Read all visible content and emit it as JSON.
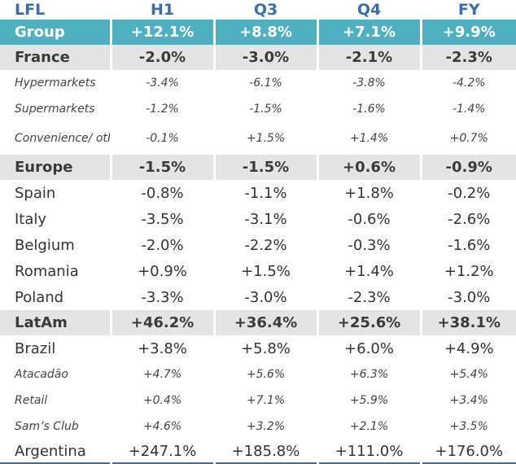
{
  "chart_data": {
    "type": "table",
    "title": "LFL",
    "columns": [
      "H1",
      "Q3",
      "Q4",
      "FY"
    ],
    "rows": [
      {
        "label": "Group",
        "level": "total",
        "values": [
          "+12.1%",
          "+8.8%",
          "+7.1%",
          "+9.9%"
        ]
      },
      {
        "label": "France",
        "level": "region",
        "values": [
          "-2.0%",
          "-3.0%",
          "-2.1%",
          "-2.3%"
        ]
      },
      {
        "label": "Hypermarkets",
        "level": "format",
        "values": [
          "-3.4%",
          "-6.1%",
          "-3.8%",
          "-4.2%"
        ]
      },
      {
        "label": "Supermarkets",
        "level": "format",
        "values": [
          "-1.2%",
          "-1.5%",
          "-1.6%",
          "-1.4%"
        ]
      },
      {
        "label": "Convenience/ other formats",
        "level": "format",
        "values": [
          "-0.1%",
          "+1.5%",
          "+1.4%",
          "+0.7%"
        ]
      },
      {
        "label": "Europe",
        "level": "region",
        "values": [
          "-1.5%",
          "-1.5%",
          "+0.6%",
          "-0.9%"
        ]
      },
      {
        "label": "Spain",
        "level": "country",
        "values": [
          "-0.8%",
          "-1.1%",
          "+1.8%",
          "-0.2%"
        ]
      },
      {
        "label": "Italy",
        "level": "country",
        "values": [
          "-3.5%",
          "-3.1%",
          "-0.6%",
          "-2.6%"
        ]
      },
      {
        "label": "Belgium",
        "level": "country",
        "values": [
          "-2.0%",
          "-2.2%",
          "-0.3%",
          "-1.6%"
        ]
      },
      {
        "label": "Romania",
        "level": "country",
        "values": [
          "+0.9%",
          "+1.5%",
          "+1.4%",
          "+1.2%"
        ]
      },
      {
        "label": "Poland",
        "level": "country",
        "values": [
          "-3.3%",
          "-3.0%",
          "-2.3%",
          "-3.0%"
        ]
      },
      {
        "label": "LatAm",
        "level": "region",
        "values": [
          "+46.2%",
          "+36.4%",
          "+25.6%",
          "+38.1%"
        ]
      },
      {
        "label": "Brazil",
        "level": "country",
        "values": [
          "+3.8%",
          "+5.8%",
          "+6.0%",
          "+4.9%"
        ]
      },
      {
        "label": "Atacadão",
        "level": "format",
        "values": [
          "+4.7%",
          "+5.6%",
          "+6.3%",
          "+5.4%"
        ]
      },
      {
        "label": "Retail",
        "level": "format",
        "values": [
          "+0.4%",
          "+7.1%",
          "+5.9%",
          "+3.4%"
        ]
      },
      {
        "label": "Sam’s Club",
        "level": "format",
        "values": [
          "+4.6%",
          "+3.2%",
          "+2.1%",
          "+3.5%"
        ]
      },
      {
        "label": "Argentina",
        "level": "country",
        "values": [
          "+247.1%",
          "+185.8%",
          "+111.0%",
          "+176.0%"
        ]
      }
    ]
  },
  "colors": {
    "header_text": "#3a6eaa",
    "group_band": "#4fb0c0",
    "region_band": "#e4e4e4",
    "bottom_rule": "#4a6a8a"
  }
}
